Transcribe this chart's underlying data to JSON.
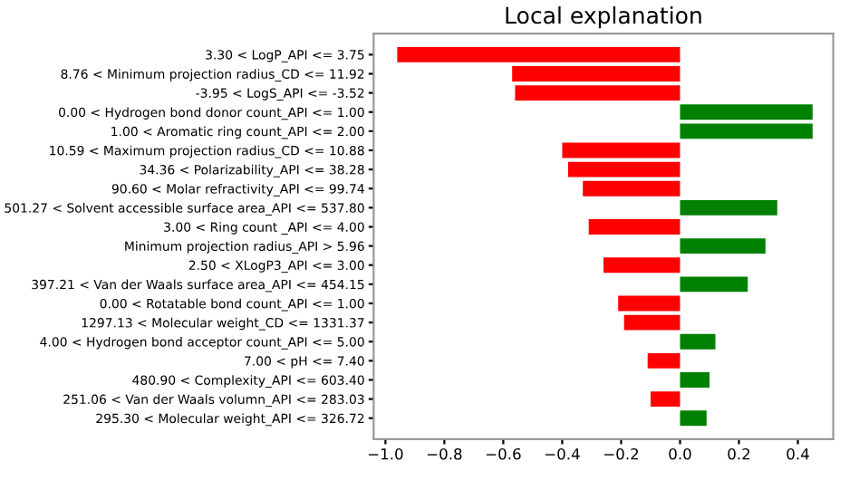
{
  "chart_data": {
    "type": "bar",
    "orientation": "horizontal",
    "title": "Local explanation",
    "categories": [
      "3.30 < LogP_API <= 3.75",
      "8.76 < Minimum projection radius_CD <= 11.92",
      "-3.95 < LogS_API <= -3.52",
      "0.00 < Hydrogen bond donor count_API <= 1.00",
      "1.00 < Aromatic ring count_API <= 2.00",
      "10.59 < Maximum projection radius_CD <= 10.88",
      "34.36 < Polarizability_API <= 38.28",
      "90.60 < Molar refractivity_API <= 99.74",
      "501.27 < Solvent accessible surface area_API <= 537.80",
      "3.00 < Ring count _API <= 4.00",
      "Minimum projection radius_API > 5.96",
      "2.50 < XLogP3_API <= 3.00",
      "397.21 < Van der Waals surface area_API <= 454.15",
      "0.00 < Rotatable bond count_API <= 1.00",
      "1297.13 < Molecular weight_CD <= 1331.37",
      "4.00 < Hydrogen bond acceptor count_API <= 5.00",
      "7.00 < pH <= 7.40",
      "480.90 < Complexity_API <= 603.40",
      "251.06 < Van der Waals volumn_API <= 283.03",
      "295.30 < Molecular weight_API <= 326.72"
    ],
    "values": [
      -0.96,
      -0.57,
      -0.56,
      0.45,
      0.45,
      -0.4,
      -0.38,
      -0.33,
      0.33,
      -0.31,
      0.29,
      -0.26,
      0.23,
      -0.21,
      -0.19,
      0.12,
      -0.11,
      0.1,
      -0.1,
      0.09
    ],
    "colors": [
      "#ff0000",
      "#ff0000",
      "#ff0000",
      "#008000",
      "#008000",
      "#ff0000",
      "#ff0000",
      "#ff0000",
      "#008000",
      "#ff0000",
      "#008000",
      "#ff0000",
      "#008000",
      "#ff0000",
      "#ff0000",
      "#008000",
      "#ff0000",
      "#008000",
      "#ff0000",
      "#008000"
    ],
    "xlim": [
      -1.04,
      0.52
    ],
    "xticks": [
      {
        "value": -1.0,
        "label": "−1.0"
      },
      {
        "value": -0.8,
        "label": "−0.8"
      },
      {
        "value": -0.6,
        "label": "−0.6"
      },
      {
        "value": -0.4,
        "label": "−0.4"
      },
      {
        "value": -0.2,
        "label": "−0.2"
      },
      {
        "value": 0.0,
        "label": "0.0"
      },
      {
        "value": 0.2,
        "label": "0.2"
      },
      {
        "value": 0.4,
        "label": "0.4"
      }
    ],
    "grid": false,
    "legend": false
  }
}
